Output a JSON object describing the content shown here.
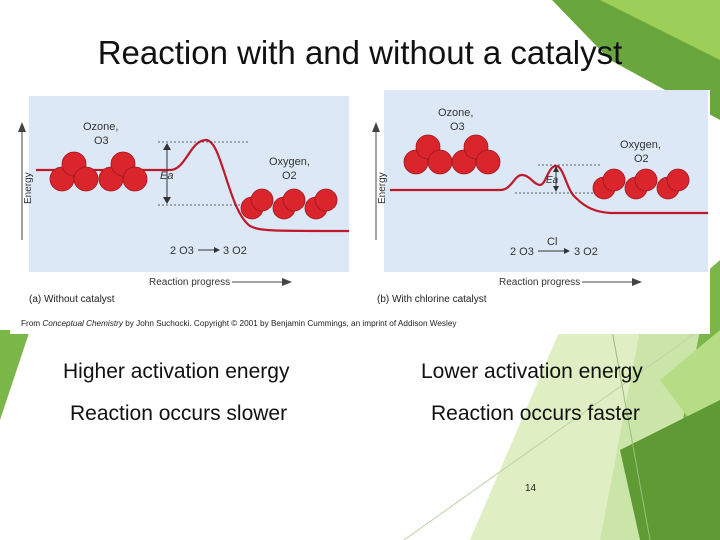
{
  "slide": {
    "title": "Reaction with and without a catalyst",
    "page_number": "14"
  },
  "colors": {
    "panel_bg": "#dce8f5",
    "curve": "#c0182a",
    "molecule": "#d9252b",
    "accent_green": "#7ab648"
  },
  "diagram": {
    "left_panel": {
      "y_axis_label": "Energy",
      "x_axis_label": "Reaction progress",
      "reactant_name": "Ozone,",
      "reactant_formula": "O3",
      "product_name": "Oxygen,",
      "product_formula": "O2",
      "equation_left": "2 O3",
      "equation_right": "3 O2",
      "activation_label": "Ea",
      "caption": "(a)  Without catalyst"
    },
    "right_panel": {
      "y_axis_label": "Energy",
      "x_axis_label": "Reaction progress",
      "reactant_name": "Ozone,",
      "reactant_formula": "O3",
      "product_name": "Oxygen,",
      "product_formula": "O2",
      "equation_left": "2 O3",
      "equation_right": "3 O2",
      "catalyst_label": "Cl",
      "activation_label": "Ea",
      "caption": "(b)  With chlorine catalyst"
    },
    "credit": {
      "prefix": "From ",
      "book": "Conceptual Chemistry",
      "rest": " by John Suchocki.  Copyright © 2001 by Benjamin Cummings, an imprint of Addison Wesley"
    }
  },
  "captions": {
    "left_line1": "Higher activation energy",
    "left_line2": "Reaction occurs slower",
    "right_line1": "Lower activation energy",
    "right_line2": "Reaction occurs faster"
  }
}
